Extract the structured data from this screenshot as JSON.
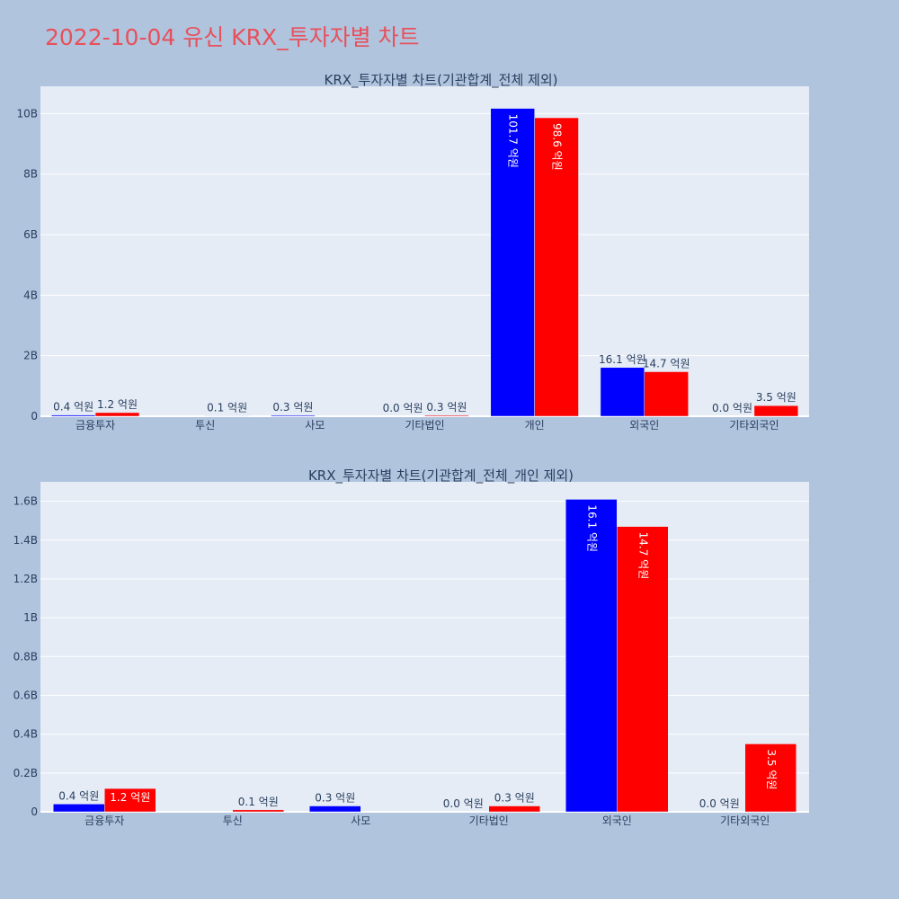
{
  "title": "2022-10-04 유신 KRX_투자자별 차트",
  "colors": {
    "buy": "#0000ff",
    "sell": "#ff0000",
    "plot_bg": "#e5ecf6",
    "page_bg": "#b0c4de",
    "title": "#e8505b"
  },
  "chart_data": [
    {
      "type": "bar",
      "title": "KRX_투자자별 차트(기관합계_전체 제외)",
      "categories": [
        "금융투자",
        "투신",
        "사모",
        "기타법인",
        "개인",
        "외국인",
        "기타외국인"
      ],
      "series": [
        {
          "color": "#0000ff",
          "values": [
            0.04,
            0.0,
            0.03,
            0.0,
            10.17,
            1.61,
            0.0
          ],
          "labels": [
            "0.4 억원",
            "",
            "0.3 억원",
            "0.0 억원",
            "101.7 억원",
            "16.1 억원",
            "0.0 억원"
          ]
        },
        {
          "color": "#ff0000",
          "values": [
            0.12,
            0.01,
            0.0,
            0.03,
            9.86,
            1.47,
            0.35
          ],
          "labels": [
            "1.2 억원",
            "0.1 억원",
            "",
            "0.3 억원",
            "98.6 억원",
            "14.7 억원",
            "3.5 억원"
          ]
        }
      ],
      "yunit": "B",
      "ylim": [
        0,
        10.9
      ],
      "yticks": [
        0,
        2,
        4,
        6,
        8,
        10
      ],
      "ytick_labels": [
        "0",
        "2B",
        "4B",
        "6B",
        "8B",
        "10B"
      ],
      "grid": true
    },
    {
      "type": "bar",
      "title": "KRX_투자자별 차트(기관합계_전체_개인 제외)",
      "categories": [
        "금융투자",
        "투신",
        "사모",
        "기타법인",
        "외국인",
        "기타외국인"
      ],
      "series": [
        {
          "color": "#0000ff",
          "values": [
            0.04,
            0.0,
            0.03,
            0.0,
            1.61,
            0.0
          ],
          "labels": [
            "0.4 억원",
            "",
            "0.3 억원",
            "0.0 억원",
            "16.1 억원",
            "0.0 억원"
          ]
        },
        {
          "color": "#ff0000",
          "values": [
            0.12,
            0.01,
            0.0,
            0.03,
            1.47,
            0.35
          ],
          "labels": [
            "1.2 억원",
            "0.1 억원",
            "",
            "0.3 억원",
            "14.7 억원",
            "3.5 억원"
          ]
        }
      ],
      "yunit": "B",
      "ylim": [
        0,
        1.7
      ],
      "yticks": [
        0,
        0.2,
        0.4,
        0.6,
        0.8,
        1.0,
        1.2,
        1.4,
        1.6
      ],
      "ytick_labels": [
        "0",
        "0.2B",
        "0.4B",
        "0.6B",
        "0.8B",
        "1B",
        "1.2B",
        "1.4B",
        "1.6B"
      ],
      "grid": true
    }
  ]
}
